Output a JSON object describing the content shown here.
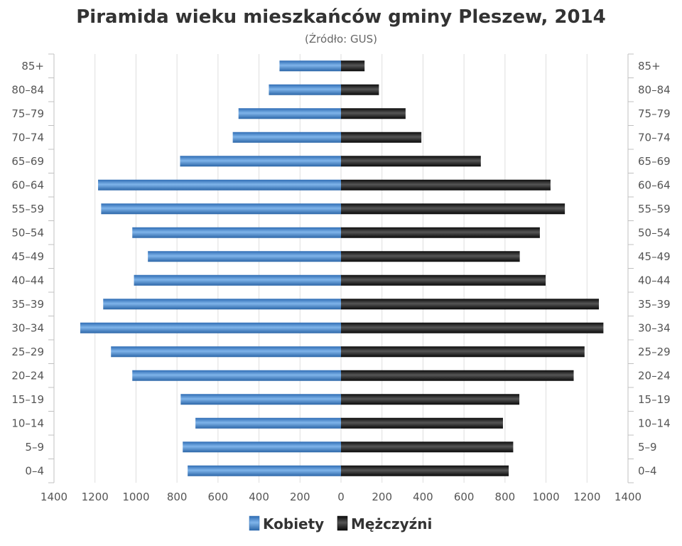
{
  "chart_data": {
    "type": "bar",
    "title": "Piramida wieku mieszkańców gminy Pleszew, 2014",
    "subtitle": "(Źródło: GUS)",
    "categories": [
      "85+",
      "80-84",
      "75-79",
      "70-74",
      "65-69",
      "60-64",
      "55-59",
      "50-54",
      "45-49",
      "40-44",
      "35-39",
      "30-34",
      "25-29",
      "20-24",
      "15-19",
      "10-14",
      "5-9",
      "0-4"
    ],
    "series": [
      {
        "name": "Kobiety",
        "color": "#4a8ed6",
        "values": [
          300,
          352,
          500,
          528,
          785,
          1185,
          1170,
          1018,
          942,
          1010,
          1160,
          1272,
          1122,
          1018,
          782,
          710,
          772,
          748
        ]
      },
      {
        "name": "Mężczyźni",
        "color": "#222222",
        "values": [
          115,
          185,
          315,
          392,
          682,
          1022,
          1092,
          970,
          872,
          998,
          1258,
          1280,
          1188,
          1135,
          870,
          790,
          840,
          818
        ]
      }
    ],
    "xticks": [
      "1400",
      "1200",
      "1000",
      "800",
      "600",
      "400",
      "200",
      "0",
      "200",
      "400",
      "600",
      "800",
      "1000",
      "1200",
      "1400"
    ],
    "xlim": [
      -1400,
      1400
    ],
    "grid": true,
    "legend_position": "bottom-center",
    "icon": "legend-swatch"
  }
}
